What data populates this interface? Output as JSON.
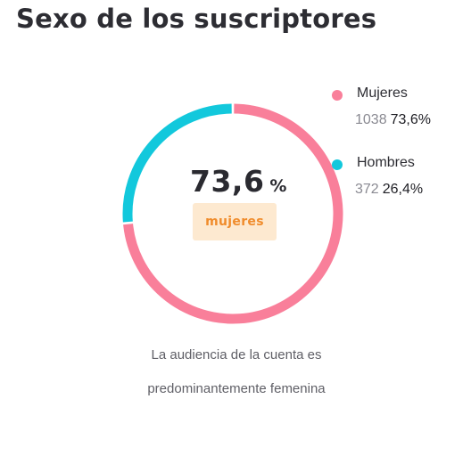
{
  "title": "Sexo de los suscriptores",
  "center": {
    "value": "73,6",
    "unit": "%",
    "badge": "mujeres"
  },
  "caption": {
    "line1": "La audiencia de la cuenta es",
    "line2": "predominantemente femenina"
  },
  "chart_data": {
    "type": "pie",
    "variant": "donut",
    "series": [
      {
        "name": "Mujeres",
        "count": 1038,
        "count_label": "1038",
        "share_label": "73,6%",
        "value": 73.6,
        "color": "#f97f9a"
      },
      {
        "name": "Hombres",
        "count": 372,
        "count_label": "372",
        "share_label": "26,4%",
        "value": 26.4,
        "color": "#12c8dc"
      }
    ],
    "legend_position": "right"
  }
}
